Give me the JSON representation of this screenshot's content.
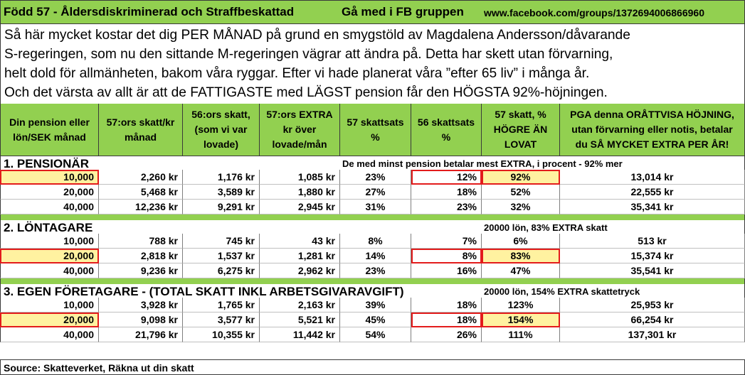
{
  "header": {
    "title": "Född 57 - Åldersdiskriminerad och Straffbeskattad",
    "group_cta": "Gå med i FB gruppen",
    "url": "www.facebook.com/groups/1372694006866960"
  },
  "intro": {
    "lines": [
      "Så här mycket kostar det dig PER MÅNAD på grund en smygstöld av Magdalena Andersson/dåvarande",
      "S-regeringen, som nu den sittande M-regeringen vägrar att ändra på. Detta har skett utan förvarning,",
      "helt dold för allmänheten, bakom våra ryggar. Efter vi hade planerat våra ”efter 65 liv” i många år.",
      "Och det värsta av allt är att de FATTIGASTE med LÄGST pension får den HÖGSTA 92%-höjningen."
    ]
  },
  "table": {
    "headers": [
      [
        "Din pension eller",
        "lön/SEK månad"
      ],
      [
        "57:ors skatt/kr",
        "månad"
      ],
      [
        "56:ors skatt,",
        "(som vi var",
        "lovade)"
      ],
      [
        "57:ors EXTRA",
        "kr över",
        "lovade/mån"
      ],
      [
        "57 skattsats",
        "%"
      ],
      [
        "56 skattsats",
        "%"
      ],
      [
        "57 skatt, %",
        "HÖGRE ÄN",
        "LOVAT"
      ],
      [
        "PGA denna ORÅTTVISA HÖJNING,",
        "utan förvarning eller notis, betalar",
        "du SÅ MYCKET EXTRA PER ÅR!"
      ]
    ],
    "sections": [
      {
        "title": "1.   PENSIONÄR",
        "note": "De med minst pension betalar mest EXTRA, i procent - 92% mer",
        "rows": [
          [
            "10,000",
            "2,260 kr",
            "1,176 kr",
            "1,085 kr",
            "23%",
            "12%",
            "92%",
            "13,014 kr"
          ],
          [
            "20,000",
            "5,468 kr",
            "3,589 kr",
            "1,880 kr",
            "27%",
            "18%",
            "52%",
            "22,555 kr"
          ],
          [
            "40,000",
            "12,236 kr",
            "9,291 kr",
            "2,945 kr",
            "31%",
            "23%",
            "32%",
            "35,341 kr"
          ]
        ],
        "highlight_row": 0
      },
      {
        "title": "2.    LÖNTAGARE",
        "note": "20000 lön, 83% EXTRA skatt",
        "rows": [
          [
            "10,000",
            "788 kr",
            "745 kr",
            "43 kr",
            "8%",
            "7%",
            "6%",
            "513 kr"
          ],
          [
            "20,000",
            "2,818 kr",
            "1,537 kr",
            "1,281 kr",
            "14%",
            "8%",
            "83%",
            "15,374 kr"
          ],
          [
            "40,000",
            "9,236 kr",
            "6,275 kr",
            "2,962 kr",
            "23%",
            "16%",
            "47%",
            "35,541 kr"
          ]
        ],
        "highlight_row": 1
      },
      {
        "title": "3. EGEN FÖRETAGARE -  (TOTAL SKATT INKL ARBETSGIVARAVGIFT)",
        "note": "20000 lön, 154% EXTRA skattetryck",
        "rows": [
          [
            "10,000",
            "3,928 kr",
            "1,765 kr",
            "2,163 kr",
            "39%",
            "18%",
            "123%",
            "25,953 kr"
          ],
          [
            "20,000",
            "9,098 kr",
            "3,577 kr",
            "5,521 kr",
            "45%",
            "18%",
            "154%",
            "66,254 kr"
          ],
          [
            "40,000",
            "21,796 kr",
            "10,355 kr",
            "11,442 kr",
            "54%",
            "26%",
            "111%",
            "137,301 kr"
          ]
        ],
        "highlight_row": 1
      }
    ]
  },
  "source": "Source: Skatteverket, Räkna ut din skatt",
  "colors": {
    "header_green": "#92d050",
    "highlight_yellow": "#ffff99",
    "highlight_border": "#e31c1c"
  }
}
